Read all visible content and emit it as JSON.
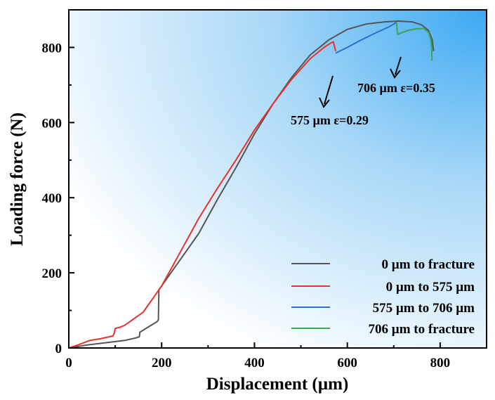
{
  "chart_data": {
    "type": "line",
    "xlabel": "Displacement (µm)",
    "ylabel": "Loading force (N)",
    "xlim": [
      0,
      900
    ],
    "ylim": [
      0,
      900
    ],
    "x_ticks": [
      0,
      200,
      400,
      600,
      800
    ],
    "y_ticks": [
      0,
      200,
      400,
      600,
      800
    ],
    "x_tick_labels": [
      "0",
      "200",
      "400",
      "600",
      "800"
    ],
    "y_tick_labels": [
      "0",
      "200",
      "400",
      "600",
      "800"
    ],
    "legend_position": "bottom-right",
    "series": [
      {
        "name": "0 µm to fracture",
        "color": "#555555",
        "x": [
          0,
          40,
          80,
          120,
          145,
          152,
          153,
          170,
          190,
          193,
          194,
          200,
          240,
          280,
          320,
          360,
          400,
          440,
          480,
          520,
          560,
          600,
          640,
          680,
          710,
          740,
          760,
          775,
          783,
          786
        ],
        "y": [
          0,
          8,
          14,
          20,
          27,
          30,
          42,
          55,
          70,
          75,
          155,
          165,
          235,
          305,
          395,
          480,
          570,
          650,
          720,
          780,
          820,
          848,
          862,
          868,
          870,
          868,
          860,
          845,
          820,
          790
        ]
      },
      {
        "name": "0 µm to 575 µm",
        "color": "#e8312a",
        "x": [
          0,
          20,
          45,
          70,
          95,
          98,
          100,
          110,
          120,
          160,
          200,
          240,
          280,
          320,
          360,
          400,
          440,
          480,
          520,
          550,
          565,
          570,
          575
        ],
        "y": [
          0,
          8,
          20,
          25,
          32,
          40,
          52,
          55,
          60,
          95,
          165,
          255,
          345,
          425,
          500,
          580,
          650,
          715,
          770,
          800,
          812,
          815,
          790
        ]
      },
      {
        "name": "575 µm to 706 µm",
        "color": "#2a6fd6",
        "x": [
          575,
          600,
          630,
          660,
          690,
          705,
          706
        ],
        "y": [
          785,
          800,
          820,
          838,
          855,
          866,
          868
        ]
      },
      {
        "name": "706 µm to fracture",
        "color": "#36a852",
        "x": [
          706,
          708,
          730,
          750,
          765,
          775,
          780,
          782,
          782
        ],
        "y": [
          868,
          835,
          845,
          850,
          850,
          840,
          820,
          795,
          765
        ]
      }
    ],
    "annotations": [
      {
        "text": "575 µm ε=0.29",
        "x": 575,
        "y": 790
      },
      {
        "text": "706 µm ε=0.35",
        "x": 706,
        "y": 868
      }
    ]
  }
}
